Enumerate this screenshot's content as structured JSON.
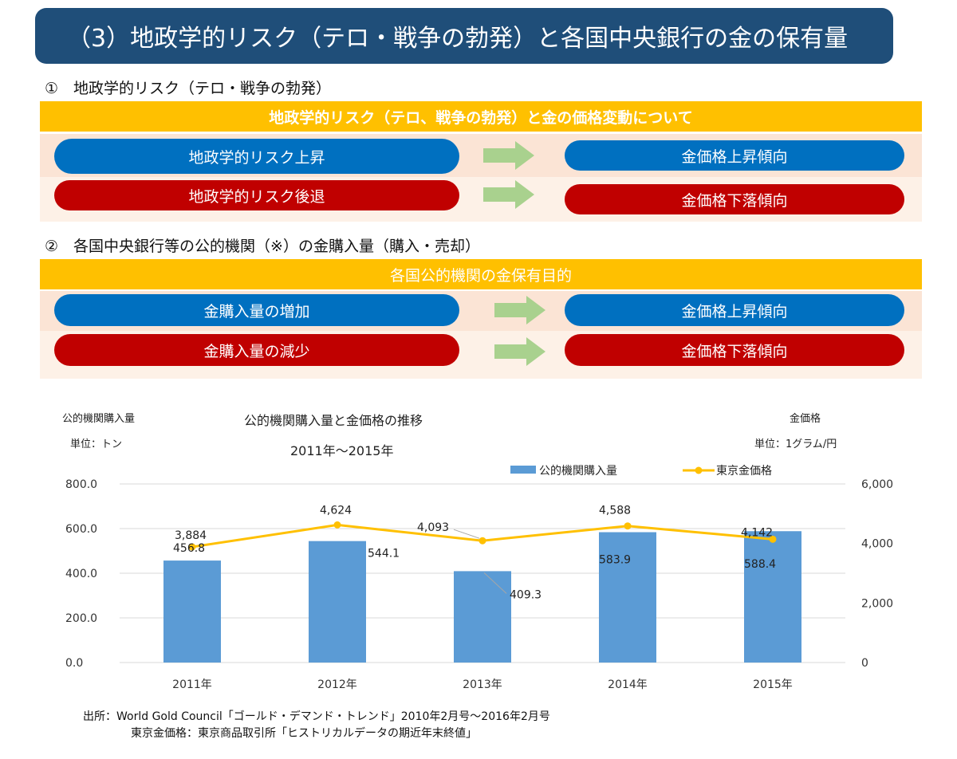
{
  "header": {
    "title": "（3）地政学的リスク（テロ・戦争の勃発）と各国中央銀行の金の保有量"
  },
  "section1": {
    "title": "①　地政学的リスク（テロ・戦争の勃発）",
    "band": "地政学的リスク（テロ、戦争の勃発）と金の価格変動について",
    "rows": [
      {
        "left": "地政学的リスク上昇",
        "right": "金価格上昇傾向"
      },
      {
        "left": "地政学的リスク後退",
        "right": "金価格下落傾向"
      }
    ]
  },
  "section2": {
    "title": "②　各国中央銀行等の公的機関（※）の金購入量（購入・売却）",
    "band": "各国公的機関の金保有目的",
    "rows": [
      {
        "left": "金購入量の増加",
        "right": "金価格上昇傾向"
      },
      {
        "left": "金購入量の減少",
        "right": "金価格下落傾向"
      }
    ]
  },
  "colors": {
    "header": "#1f4e79",
    "band": "#ffc000",
    "blue": "#0070c0",
    "red": "#c00000",
    "arrow": "#a9d18e",
    "bar": "#5b9bd5",
    "line": "#ffc000"
  },
  "chart_data": {
    "type": "bar",
    "title": "公的機関購入量と金価格の推移",
    "subtitle": "2011年～2015年",
    "ylabel_left": "公的機関購入量",
    "unit_left": "単位：トン",
    "ylabel_right": "金価格",
    "unit_right": "単位：1グラム/円",
    "categories": [
      "2011年",
      "2012年",
      "2013年",
      "2014年",
      "2015年"
    ],
    "series": [
      {
        "name": "公的機関購入量",
        "type": "bar",
        "axis": "left",
        "values": [
          456.8,
          544.1,
          409.3,
          583.9,
          588.4
        ],
        "labels": [
          "456.8",
          "544.1",
          "409.3",
          "583.9",
          "588.4"
        ]
      },
      {
        "name": "東京金価格",
        "type": "line",
        "axis": "right",
        "values": [
          3884,
          4624,
          4093,
          4588,
          4142
        ],
        "labels": [
          "3,884",
          "4,624",
          "4,093",
          "4,588",
          "4,142"
        ]
      }
    ],
    "ylim_left": [
      0,
      800
    ],
    "yticks_left": [
      "0.0",
      "200.0",
      "400.0",
      "600.0",
      "800.0"
    ],
    "ylim_right": [
      0,
      6000
    ],
    "yticks_right": [
      "0",
      "2,000",
      "4,000",
      "6,000"
    ],
    "grid": true,
    "legend": "top-right"
  },
  "source": {
    "line1": "出所：World Gold Council「ゴールド・デマンド・トレンド」2010年2月号～2016年2月号",
    "line2": "東京金価格：東京商品取引所「ヒストリカルデータの期近年末終値」"
  }
}
